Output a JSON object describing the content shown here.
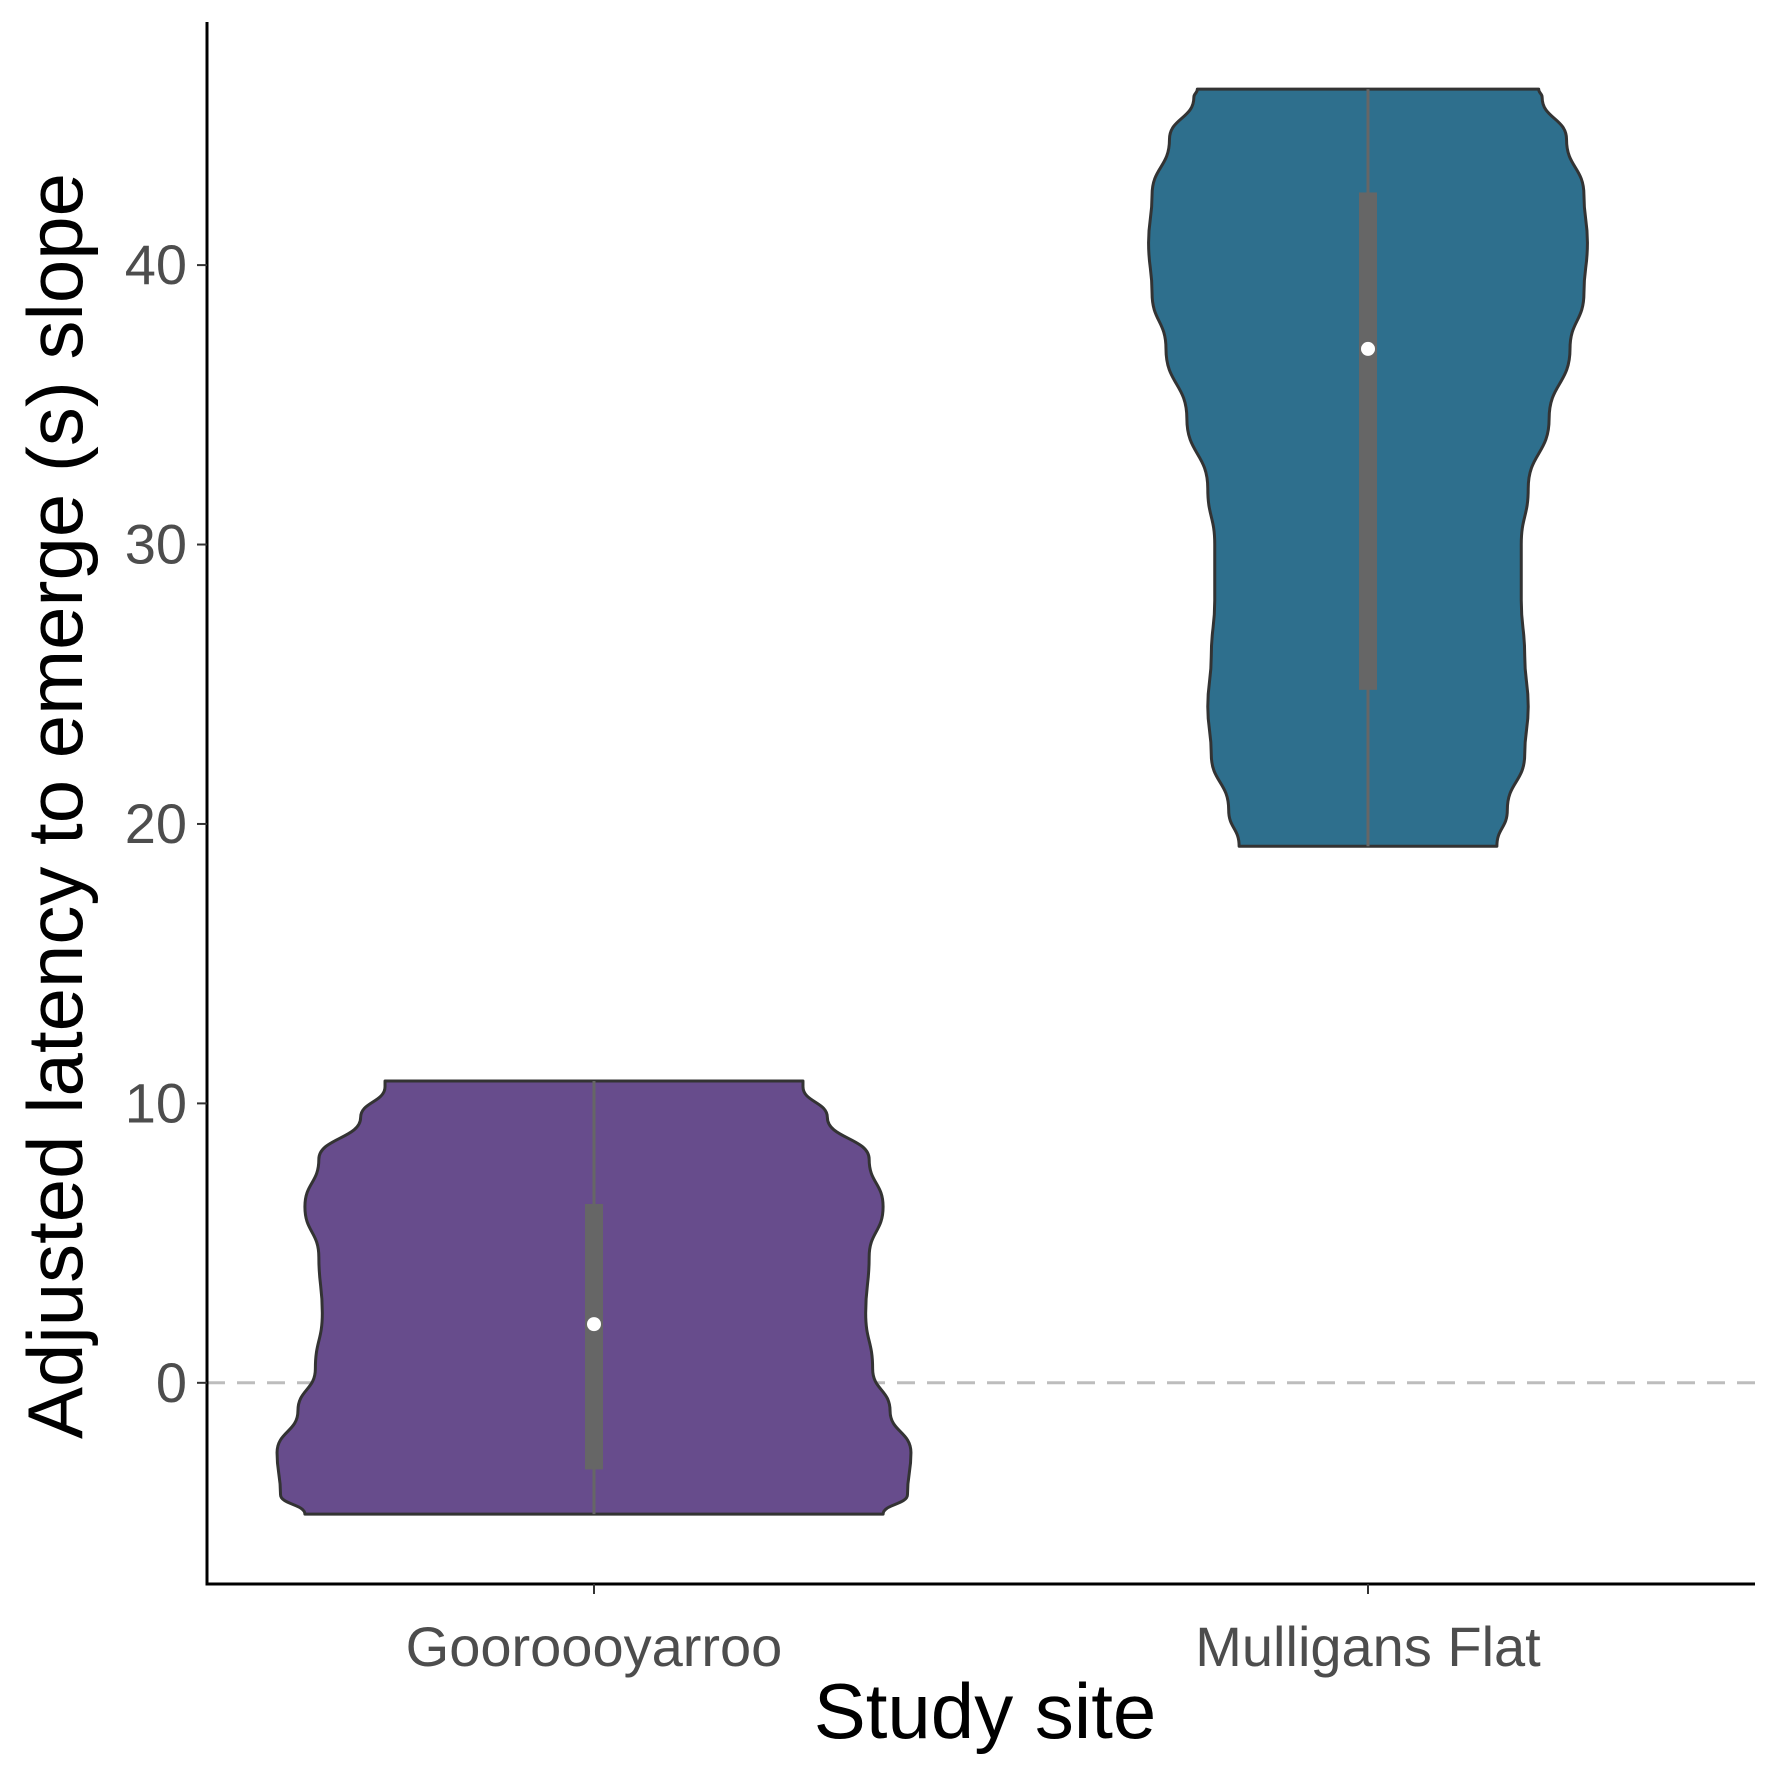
{
  "chart_data": {
    "type": "violin",
    "xlabel": "Study site",
    "ylabel": "Adjusted latency to emerge (s) slope",
    "ylim": [
      -7.2,
      48.7
    ],
    "yticks": [
      0,
      10,
      20,
      30,
      40
    ],
    "reference_line": {
      "y": 0,
      "style": "dashed",
      "color": "#bdbdbd"
    },
    "grid": false,
    "legend": "none",
    "categories": [
      "Gooroooyarroo",
      "Mulligans Flat"
    ],
    "series": [
      {
        "category": "Gooroooyarroo",
        "color": "#674c8c",
        "min": -4.7,
        "max": 10.8,
        "q1": -3.1,
        "median": 2.1,
        "q3": 6.4,
        "density": [
          {
            "y": -4.7,
            "w": 0.83
          },
          {
            "y": -4.0,
            "w": 0.9
          },
          {
            "y": -2.5,
            "w": 0.91
          },
          {
            "y": -1.0,
            "w": 0.85
          },
          {
            "y": 0.5,
            "w": 0.8
          },
          {
            "y": 2.5,
            "w": 0.78
          },
          {
            "y": 4.5,
            "w": 0.79
          },
          {
            "y": 6.3,
            "w": 0.83
          },
          {
            "y": 8.0,
            "w": 0.79
          },
          {
            "y": 9.5,
            "w": 0.67
          },
          {
            "y": 10.6,
            "w": 0.6
          },
          {
            "y": 10.8,
            "w": 0.6
          }
        ]
      },
      {
        "category": "Mulligans Flat",
        "color": "#2e6f8d",
        "min": 19.2,
        "max": 46.3,
        "q1": 24.8,
        "median": 37.0,
        "q3": 42.6,
        "density": [
          {
            "y": 19.2,
            "w": 0.37
          },
          {
            "y": 20.5,
            "w": 0.4
          },
          {
            "y": 22.5,
            "w": 0.45
          },
          {
            "y": 24.2,
            "w": 0.46
          },
          {
            "y": 26.0,
            "w": 0.45
          },
          {
            "y": 28.0,
            "w": 0.44
          },
          {
            "y": 30.0,
            "w": 0.44
          },
          {
            "y": 32.0,
            "w": 0.46
          },
          {
            "y": 34.5,
            "w": 0.52
          },
          {
            "y": 37.0,
            "w": 0.58
          },
          {
            "y": 39.0,
            "w": 0.62
          },
          {
            "y": 40.8,
            "w": 0.63
          },
          {
            "y": 42.5,
            "w": 0.62
          },
          {
            "y": 44.5,
            "w": 0.57
          },
          {
            "y": 46.0,
            "w": 0.5
          },
          {
            "y": 46.3,
            "w": 0.49
          }
        ]
      }
    ]
  }
}
